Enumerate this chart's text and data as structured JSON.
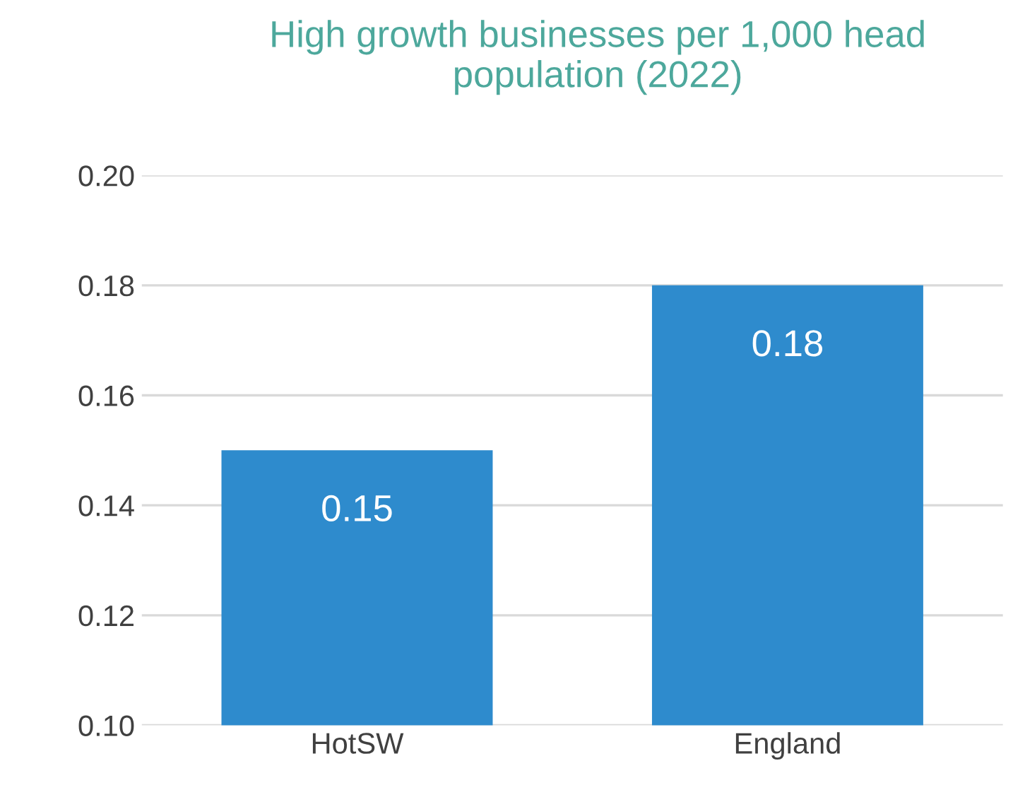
{
  "chart_data": {
    "type": "bar",
    "title": "High growth businesses per 1,000 head population (2022)",
    "categories": [
      "HotSW",
      "England"
    ],
    "values": [
      0.15,
      0.18
    ],
    "color": "#2e8bcd",
    "ylim": [
      0.1,
      0.2
    ],
    "yticks": [
      {
        "value": 0.1,
        "label": "0.10"
      },
      {
        "value": 0.12,
        "label": "0.12"
      },
      {
        "value": 0.14,
        "label": "0.14"
      },
      {
        "value": 0.16,
        "label": "0.16"
      },
      {
        "value": 0.18,
        "label": "0.18"
      },
      {
        "value": 0.2,
        "label": "0.20"
      }
    ],
    "grid": "y",
    "data_labels": true
  }
}
